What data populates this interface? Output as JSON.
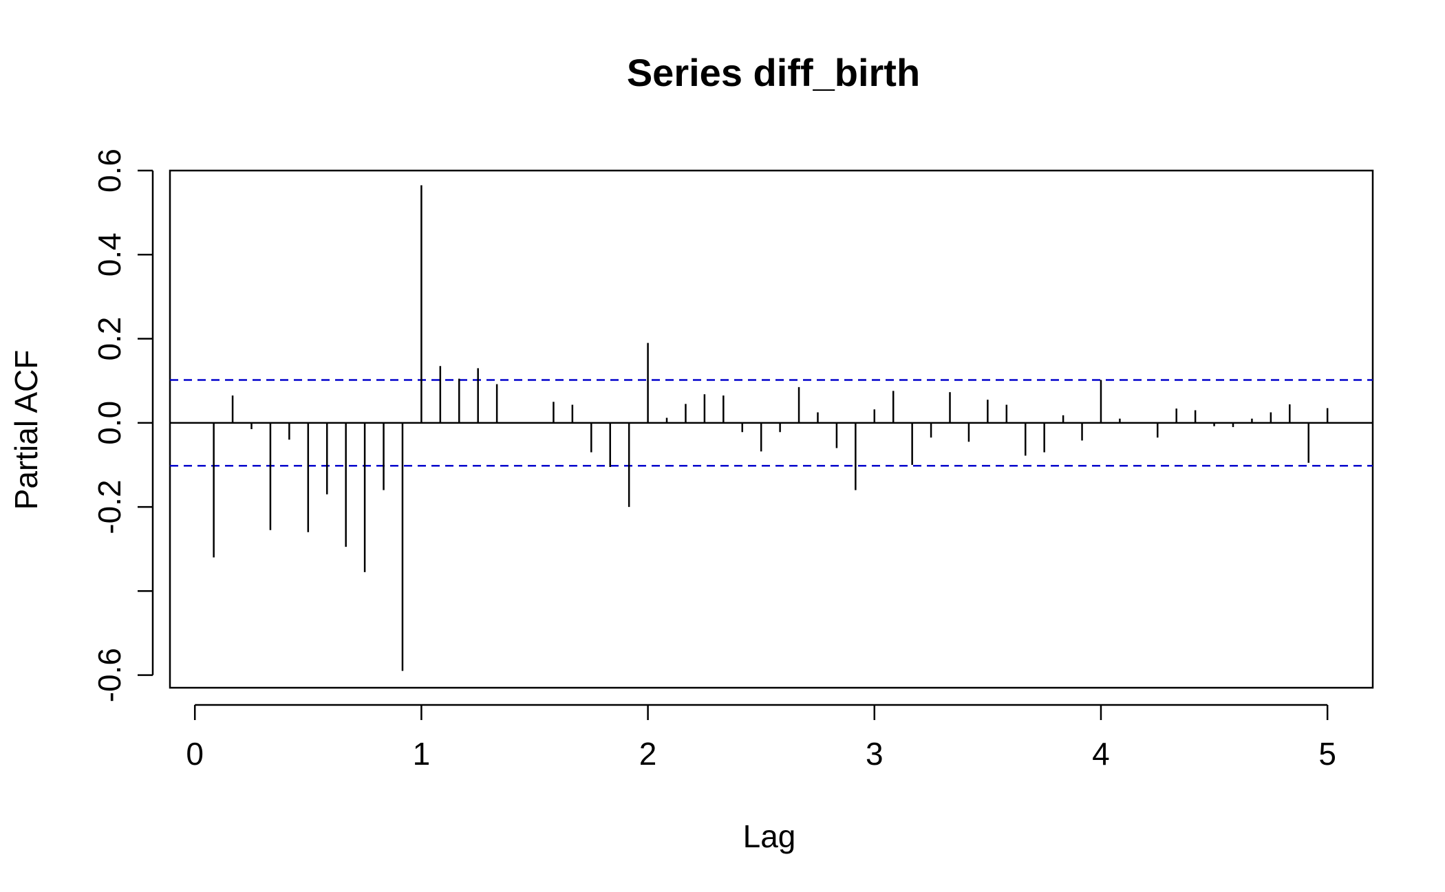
{
  "chart_data": {
    "type": "bar",
    "title": "Series  diff_birth",
    "xlabel": "Lag",
    "ylabel": "Partial ACF",
    "xlim": [
      -0.11,
      5.2
    ],
    "ylim": [
      -0.63,
      0.6
    ],
    "x_ticks": [
      "0",
      "1",
      "2",
      "3",
      "4",
      "5"
    ],
    "y_ticks": [
      "-0.6",
      "-0.2",
      "0.0",
      "0.2",
      "0.4",
      "0.6"
    ],
    "y_tick_marks": [
      -0.6,
      -0.4,
      -0.2,
      0.0,
      0.2,
      0.4,
      0.6
    ],
    "confidence_limit": 0.102,
    "confidence_color": "#0000cc",
    "bar_color": "#000000",
    "grid": false,
    "lag_step": 0.0833333,
    "values": [
      -0.32,
      0.065,
      -0.015,
      -0.255,
      -0.04,
      -0.26,
      -0.17,
      -0.295,
      -0.355,
      -0.16,
      -0.59,
      0.565,
      0.135,
      0.105,
      0.13,
      0.092,
      0.0,
      0.0,
      0.05,
      0.043,
      -0.07,
      -0.105,
      -0.2,
      0.19,
      0.012,
      0.045,
      0.068,
      0.065,
      -0.022,
      -0.068,
      -0.022,
      0.085,
      0.025,
      -0.06,
      -0.16,
      0.032,
      0.076,
      -0.1,
      -0.035,
      0.073,
      -0.045,
      0.055,
      0.043,
      -0.078,
      -0.07,
      0.018,
      -0.042,
      0.102,
      0.01,
      0.0,
      -0.035,
      0.034,
      0.03,
      -0.008,
      -0.01,
      0.01,
      0.025,
      0.044,
      -0.095,
      0.035
    ]
  }
}
